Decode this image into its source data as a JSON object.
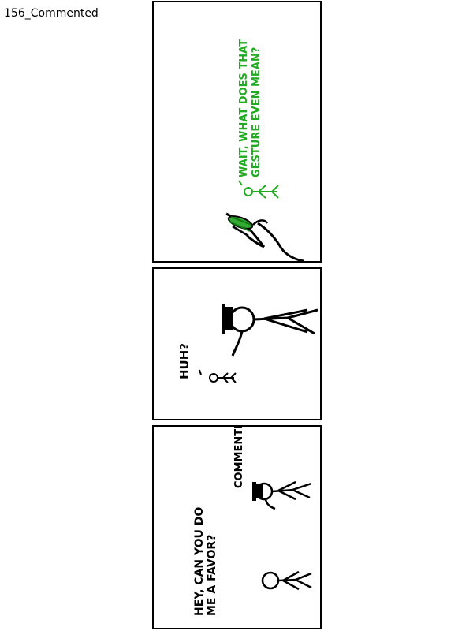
{
  "comic": {
    "caption": "156_Commented",
    "panel1": {
      "line1": "WAIT, WHAT DOES THAT",
      "line2": "GESTURE EVEN MEAN?",
      "speech_color": "#22aa22"
    },
    "panel2": {
      "speech": "HUH?"
    },
    "panel3": {
      "hat_line": "COMMENTED!",
      "speaker_line1": "HEY, CAN YOU DO",
      "speaker_line2": "ME A FAVOR?"
    }
  }
}
